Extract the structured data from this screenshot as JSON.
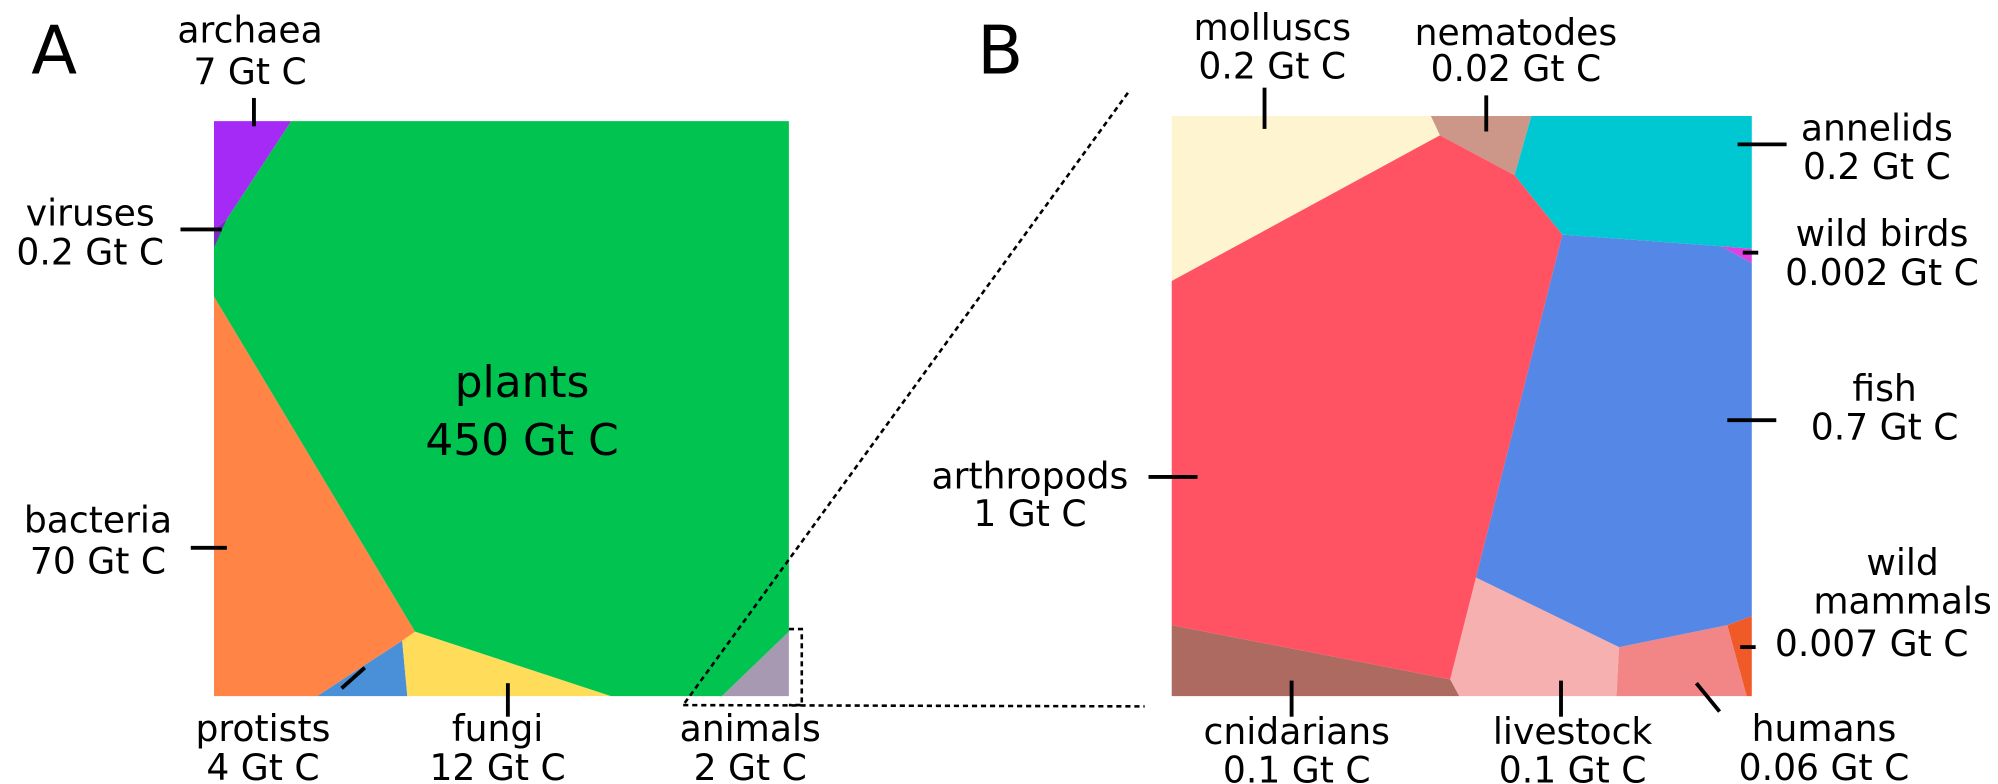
{
  "chart_data": [
    {
      "type": "voronoi-treemap",
      "panel": "A",
      "categories": [
        "plants",
        "bacteria",
        "fungi",
        "archaea",
        "protists",
        "animals",
        "viruses"
      ],
      "values": [
        450,
        70,
        12,
        7,
        4,
        2,
        0.2
      ],
      "value_labels": [
        "450 Gt C",
        "70 Gt C",
        "12 Gt C",
        "7 Gt C",
        "4 Gt C",
        "2 Gt C",
        "0.2 Gt C"
      ],
      "colors": [
        "#00c44f",
        "#ff8445",
        "#ffdc5a",
        "#a52af5",
        "#4a90d9",
        "#a899b3",
        "#7a2dbd"
      ]
    },
    {
      "type": "voronoi-treemap",
      "panel": "B",
      "categories": [
        "arthropods",
        "fish",
        "molluscs",
        "annelids",
        "cnidarians",
        "livestock",
        "humans",
        "nematodes",
        "wild mammals",
        "wild birds"
      ],
      "values": [
        1,
        0.7,
        0.2,
        0.2,
        0.1,
        0.1,
        0.06,
        0.02,
        0.007,
        0.002
      ],
      "value_labels": [
        "1 Gt C",
        "0.7 Gt C",
        "0.2 Gt C",
        "0.2 Gt C",
        "0.1 Gt C",
        "0.1 Gt C",
        "0.06 Gt C",
        "0.02 Gt C",
        "0.007 Gt C",
        "0.002 Gt C"
      ],
      "colors": [
        "#ff5263",
        "#5588e6",
        "#fff4d0",
        "#00c8d2",
        "#ad6a60",
        "#f7b0b0",
        "#f28585",
        "#cc9688",
        "#f05a28",
        "#e040e0"
      ]
    }
  ]
}
